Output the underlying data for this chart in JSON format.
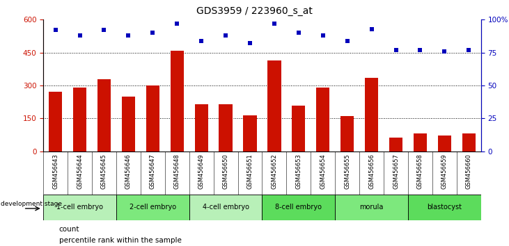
{
  "title": "GDS3959 / 223960_s_at",
  "samples": [
    "GSM456643",
    "GSM456644",
    "GSM456645",
    "GSM456646",
    "GSM456647",
    "GSM456648",
    "GSM456649",
    "GSM456650",
    "GSM456651",
    "GSM456652",
    "GSM456653",
    "GSM456654",
    "GSM456655",
    "GSM456656",
    "GSM456657",
    "GSM456658",
    "GSM456659",
    "GSM456660"
  ],
  "counts": [
    270,
    292,
    330,
    248,
    300,
    460,
    215,
    215,
    163,
    415,
    208,
    290,
    160,
    335,
    63,
    80,
    73,
    80
  ],
  "percentiles": [
    92,
    88,
    92,
    88,
    90,
    97,
    84,
    88,
    82,
    97,
    90,
    88,
    84,
    93,
    77,
    77,
    76,
    77
  ],
  "stages": [
    {
      "label": "1-cell embryo",
      "start": 0,
      "end": 3,
      "color": "#b8f0b8"
    },
    {
      "label": "2-cell embryo",
      "start": 3,
      "end": 6,
      "color": "#7de87d"
    },
    {
      "label": "4-cell embryo",
      "start": 6,
      "end": 9,
      "color": "#b8f0b8"
    },
    {
      "label": "8-cell embryo",
      "start": 9,
      "end": 12,
      "color": "#5cdc5c"
    },
    {
      "label": "morula",
      "start": 12,
      "end": 15,
      "color": "#7de87d"
    },
    {
      "label": "blastocyst",
      "start": 15,
      "end": 18,
      "color": "#5cdc5c"
    }
  ],
  "bar_color": "#cc1100",
  "dot_color": "#0000bb",
  "ylim_left": [
    0,
    600
  ],
  "ylim_right": [
    0,
    100
  ],
  "yticks_left": [
    0,
    150,
    300,
    450,
    600
  ],
  "yticks_right": [
    0,
    25,
    50,
    75,
    100
  ],
  "grid_values": [
    150,
    300,
    450
  ],
  "title_fontsize": 10,
  "tick_bg_color": "#d8d8d8",
  "fig_bg_color": "#ffffff"
}
